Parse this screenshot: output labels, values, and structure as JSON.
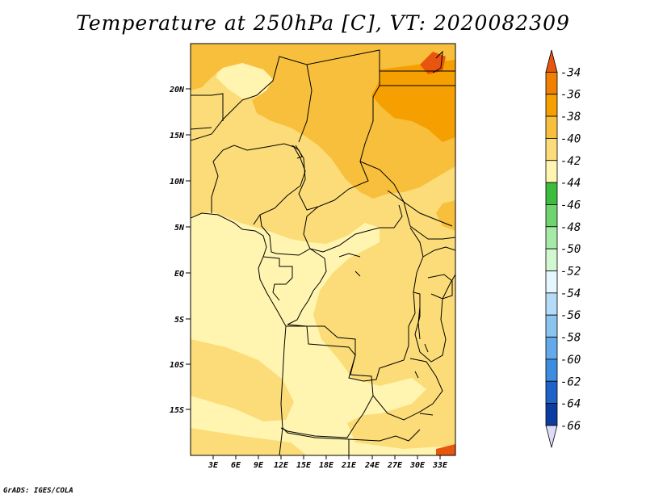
{
  "title": "Temperature at 250hPa [C], VT: 2020082309",
  "credit": "GrADS: IGES/COLA",
  "lat_ticks": [
    "20N",
    "15N",
    "10N",
    "5N",
    "EQ",
    "5S",
    "10S",
    "15S"
  ],
  "lon_ticks": [
    "3E",
    "6E",
    "9E",
    "12E",
    "15E",
    "18E",
    "21E",
    "24E",
    "27E",
    "30E",
    "33E"
  ],
  "colorbar": {
    "labels": [
      "-34",
      "-36",
      "-38",
      "-40",
      "-42",
      "-44",
      "-46",
      "-48",
      "-50",
      "-52",
      "-54",
      "-56",
      "-58",
      "-60",
      "-62",
      "-64",
      "-66"
    ],
    "colors": [
      "#e8550f",
      "#f08000",
      "#f5a000",
      "#f8bf3c",
      "#fbdc78",
      "#fff5b0",
      "#3dbd3d",
      "#6fd46f",
      "#a6eaa6",
      "#d2f8d2",
      "#e6f6ff",
      "#b4dcf8",
      "#8cc4f0",
      "#64aaea",
      "#3c8ce0",
      "#1e64c8",
      "#0c3ca0",
      "#0a1464",
      "#dcdcf8"
    ]
  },
  "field_colors": {
    "t42": "#fff5b0",
    "t40": "#fbdc78",
    "t38": "#f8bf3c",
    "t36": "#f5a000",
    "t34": "#e8550f"
  }
}
